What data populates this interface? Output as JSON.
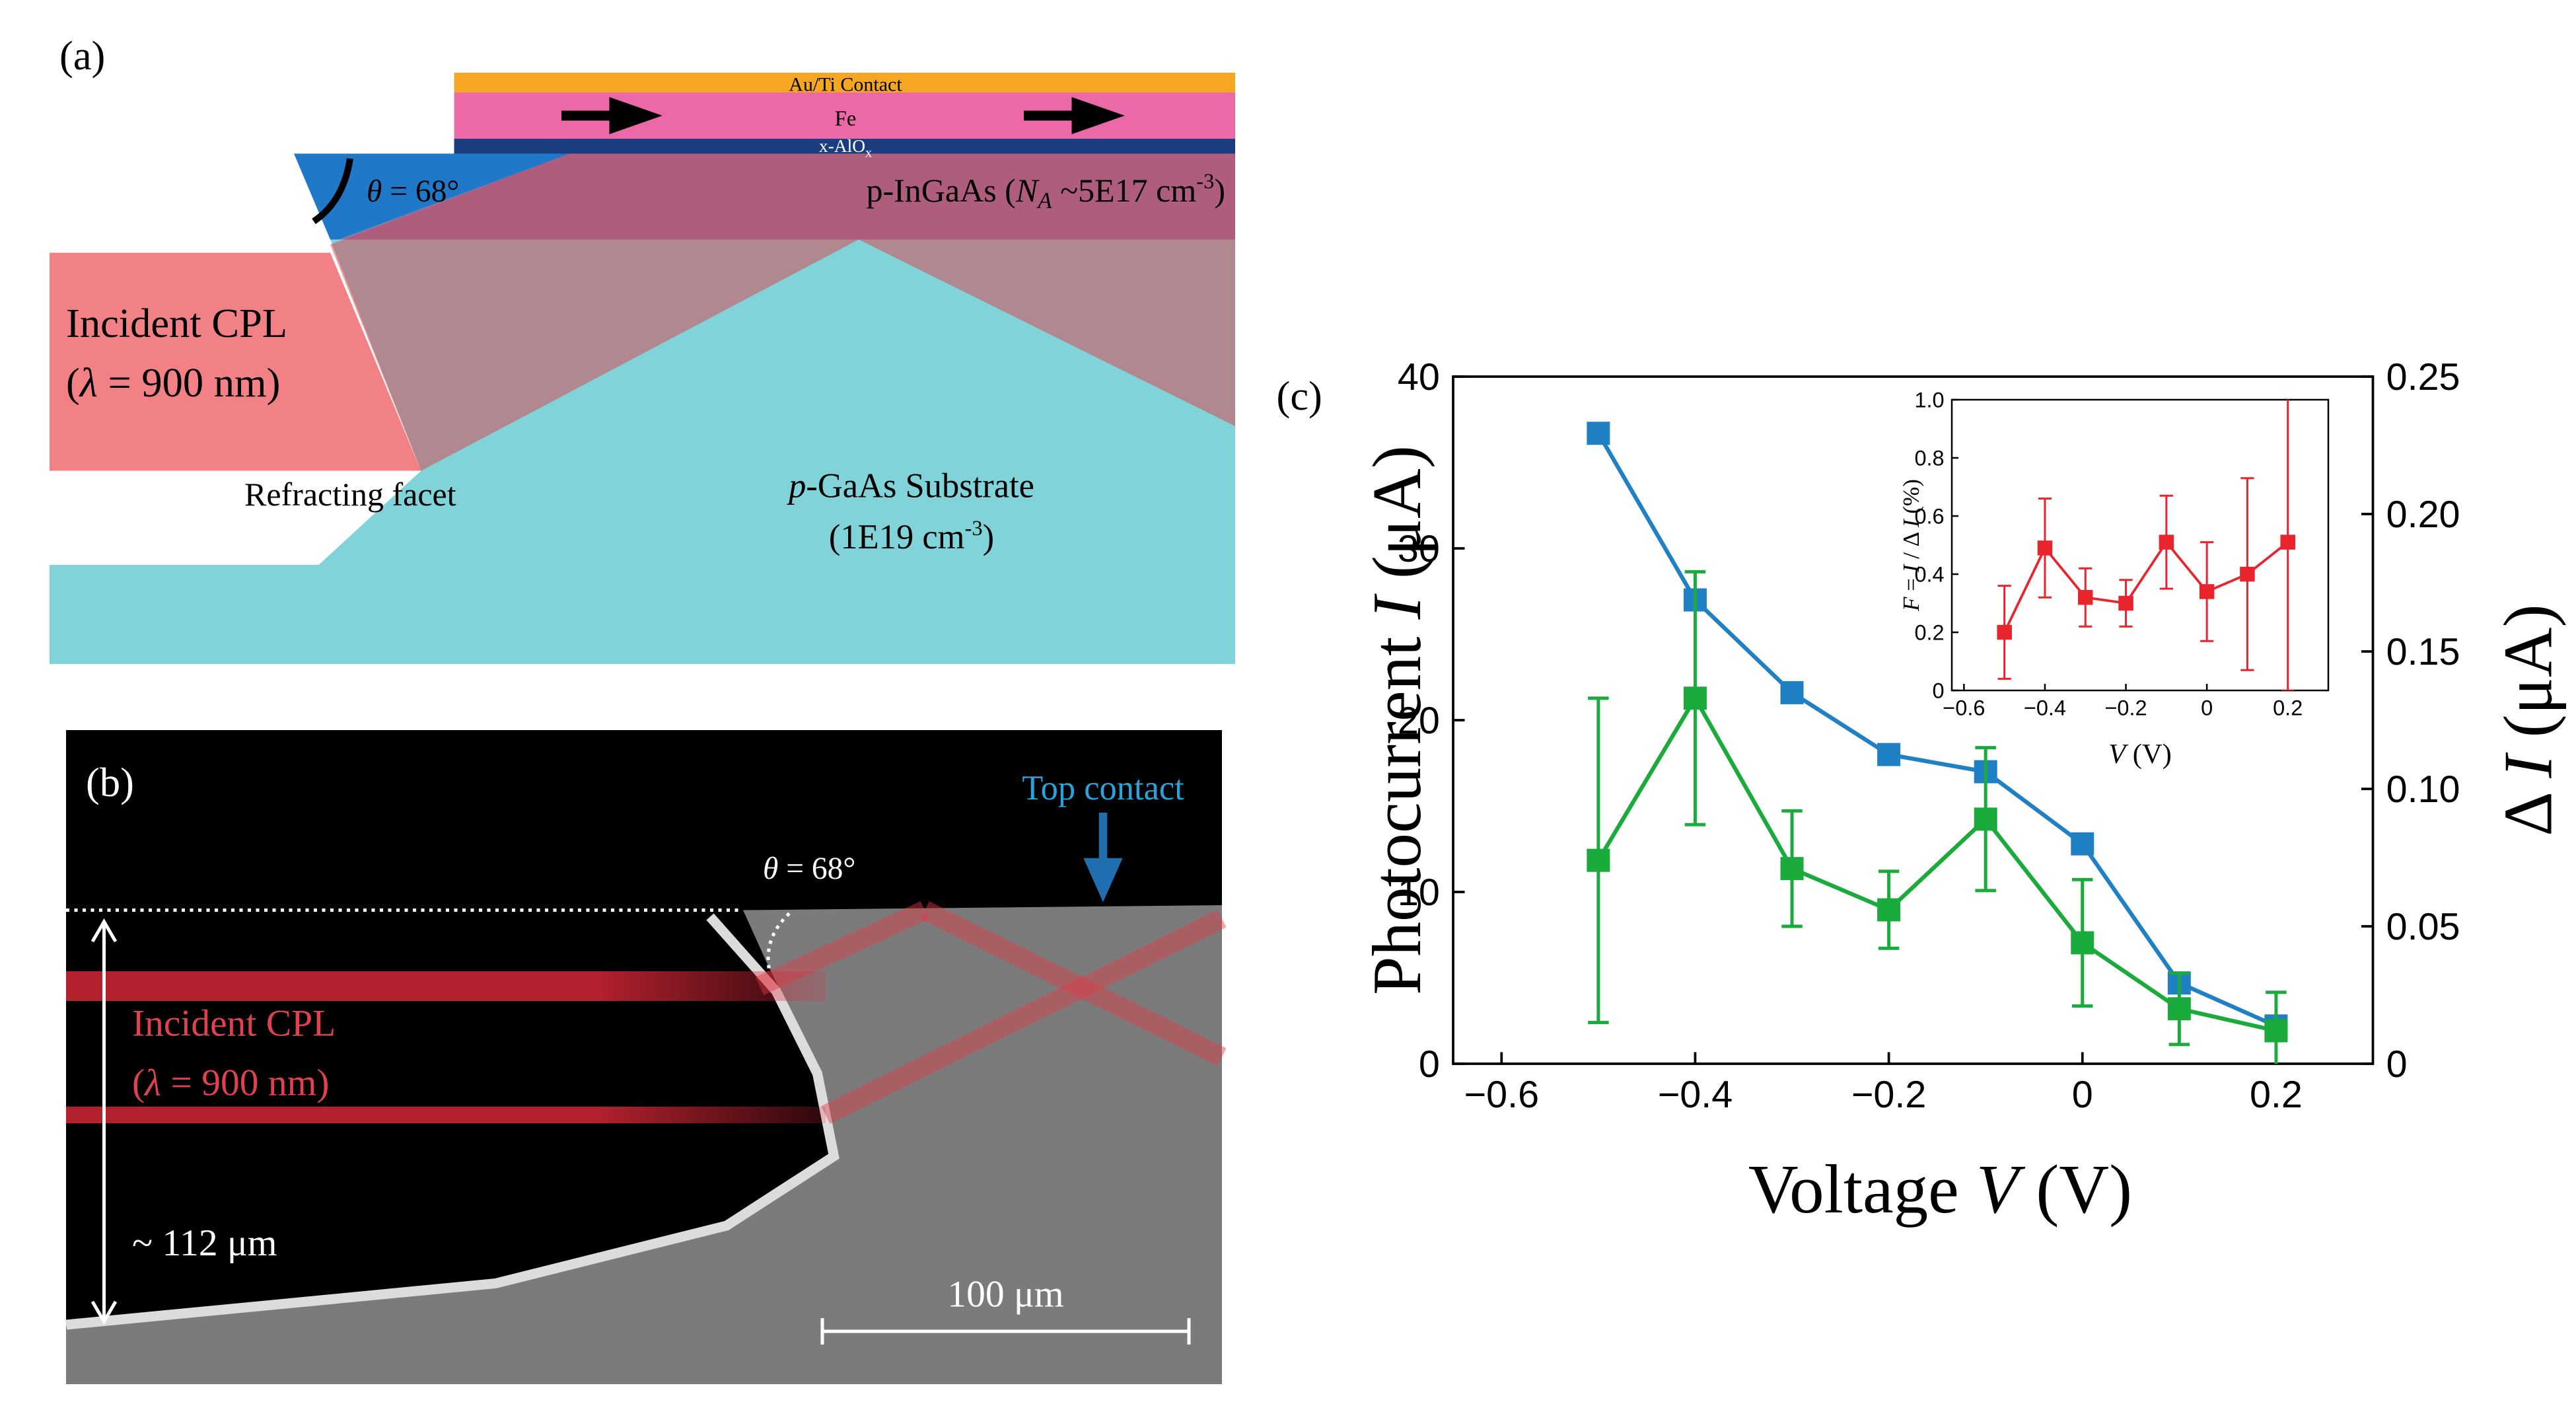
{
  "panel_labels": [
    "(a)",
    "(b)",
    "(c)"
  ],
  "panel_a": {
    "contact": "Au/Ti Contact",
    "fe": "Fe",
    "oxide": [
      "x-AlO",
      "x"
    ],
    "angle": [
      "θ",
      " = 68°"
    ],
    "layer": [
      "p-InGaAs (",
      "N",
      "A",
      " ~5E17 cm",
      "-3",
      ")"
    ],
    "incident": {
      "line1": "Incident CPL",
      "line2": [
        "(",
        "λ",
        " = 900 nm)"
      ]
    },
    "facet": "Refracting facet",
    "substrate": [
      "p",
      "-GaAs Substrate"
    ],
    "doping": [
      "(1E19 cm",
      "-3",
      ")"
    ]
  },
  "panel_b": {
    "contact": "Top contact",
    "angle": [
      "θ",
      " = 68°"
    ],
    "incident": {
      "line1": "Incident CPL",
      "line2": [
        "(",
        "λ",
        " = 900 nm)"
      ]
    },
    "thickness": "~ 112 μm",
    "scale_bar": "100 μm"
  },
  "chart_data": [
    {
      "type": "line",
      "xlabel": [
        "Voltage ",
        "V",
        " (V)"
      ],
      "ylabel": [
        "Photocurrent ",
        "I",
        " (μA)"
      ],
      "y2label": [
        "Δ ",
        "I",
        " (μA)"
      ],
      "xlim": [
        -0.65,
        0.3
      ],
      "xticks": [
        {
          "value": -0.6,
          "label": "−0.6"
        },
        {
          "value": -0.4,
          "label": "−0.4"
        },
        {
          "value": -0.2,
          "label": "−0.2"
        },
        0,
        0.2
      ],
      "ylim": [
        0,
        40
      ],
      "yticks": [
        0,
        10,
        20,
        30,
        40
      ],
      "y2lim": [
        0,
        0.25
      ],
      "y2ticks": [
        0,
        0.05,
        {
          "value": 0.1,
          "label": "0.10"
        },
        0.15,
        {
          "value": 0.2,
          "label": "0.20"
        },
        0.25
      ],
      "x": [
        -0.5,
        -0.4,
        -0.3,
        -0.2,
        -0.1,
        0,
        0.1,
        0.2
      ],
      "series": [
        {
          "color": "#1f80c4",
          "values": [
            36.7,
            27,
            21.6,
            18,
            17,
            12.8,
            4.7,
            2.2
          ]
        },
        {
          "color": "#1aab3c",
          "axis": "y2",
          "values": [
            0.074,
            0.133,
            0.071,
            0.056,
            0.089,
            0.044,
            0.02,
            0.012
          ],
          "errors": [
            0.059,
            0.046,
            0.021,
            0.014,
            0.026,
            0.023,
            0.013,
            0.014
          ]
        }
      ]
    },
    {
      "type": "line",
      "xlabel": [
        "V",
        " (V)"
      ],
      "ylabel": [
        "F",
        " = ",
        "I",
        " / Δ ",
        "I",
        " (%)"
      ],
      "xlim": [
        -0.63,
        0.3
      ],
      "xticks": [
        {
          "value": -0.6,
          "label": "−0.6"
        },
        {
          "value": -0.4,
          "label": "−0.4"
        },
        {
          "value": -0.2,
          "label": "−0.2"
        },
        0,
        0.2
      ],
      "ylim": [
        0,
        1
      ],
      "yticks": [
        0,
        0.2,
        0.4,
        0.6,
        0.8,
        {
          "value": 1,
          "label": "1.0"
        }
      ],
      "x": [
        -0.5,
        -0.4,
        -0.3,
        -0.2,
        -0.1,
        0,
        0.1,
        0.2
      ],
      "series": [
        {
          "color": "#e8242c",
          "values": [
            0.2,
            0.49,
            0.32,
            0.3,
            0.51,
            0.34,
            0.4,
            0.51
          ],
          "errors": [
            0.16,
            0.17,
            0.1,
            0.08,
            0.16,
            0.17,
            0.33,
            0.51
          ]
        }
      ]
    }
  ]
}
